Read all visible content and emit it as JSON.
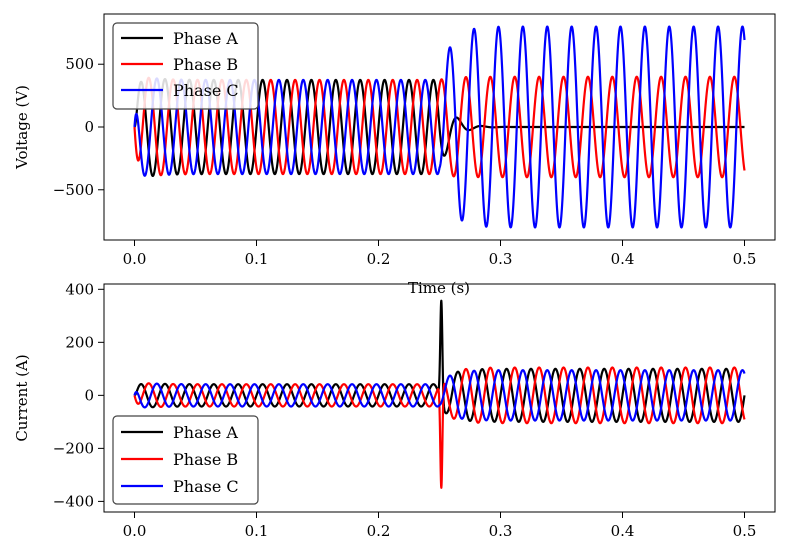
{
  "chart_data": [
    {
      "type": "line",
      "title": "",
      "xlabel": "Time (s)",
      "ylabel": "Voltage (V)",
      "xlim": [
        -0.025,
        0.525
      ],
      "ylim": [
        -900,
        900
      ],
      "xticks": [
        0.0,
        0.1,
        0.2,
        0.3,
        0.4,
        0.5
      ],
      "xtick_labels": [
        "0.0",
        "0.1",
        "0.2",
        "0.3",
        "0.4",
        "0.5"
      ],
      "yticks": [
        -500,
        0,
        500
      ],
      "ytick_labels": [
        "−500",
        "0",
        "500"
      ],
      "legend": "top-left",
      "grid": false,
      "waveform": {
        "frequency_hz": 50,
        "fault_time_s": 0.25,
        "t_end_s": 0.5,
        "pre_fault_amplitude": 375,
        "startup_peak": 430,
        "post_fault_amplitudes": {
          "Phase A": 0,
          "Phase B": 400,
          "Phase C": 800
        },
        "post_fault_offsets": {
          "Phase A": 0,
          "Phase B": 0,
          "Phase C": 0
        }
      },
      "series": [
        {
          "name": "Phase A",
          "color": "#000000",
          "phase_deg": 0
        },
        {
          "name": "Phase B",
          "color": "#ff0000",
          "phase_deg": -120
        },
        {
          "name": "Phase C",
          "color": "#0000ff",
          "phase_deg": 120
        }
      ]
    },
    {
      "type": "line",
      "title": "",
      "xlabel": "",
      "ylabel": "Current (A)",
      "xlim": [
        -0.025,
        0.525
      ],
      "ylim": [
        -440,
        420
      ],
      "xticks": [
        0.0,
        0.1,
        0.2,
        0.3,
        0.4,
        0.5
      ],
      "xtick_labels": [
        "0.0",
        "0.1",
        "0.2",
        "0.3",
        "0.4",
        "0.5"
      ],
      "yticks": [
        -400,
        -200,
        0,
        200,
        400
      ],
      "ytick_labels": [
        "−400",
        "−200",
        "0",
        "200",
        "400"
      ],
      "legend": "bottom-left",
      "grid": false,
      "waveform": {
        "frequency_hz": 50,
        "fault_time_s": 0.25,
        "t_end_s": 0.5,
        "pre_fault_amplitude": 42,
        "startup_peak": 52,
        "post_fault_amplitudes": {
          "Phase A": 100,
          "Phase B": 105,
          "Phase C": 95
        },
        "fault_spike": {
          "Phase A": 380,
          "Phase B": -400
        }
      },
      "series": [
        {
          "name": "Phase A",
          "color": "#000000",
          "phase_deg": 0
        },
        {
          "name": "Phase B",
          "color": "#ff0000",
          "phase_deg": -120
        },
        {
          "name": "Phase C",
          "color": "#0000ff",
          "phase_deg": 120
        }
      ]
    }
  ]
}
